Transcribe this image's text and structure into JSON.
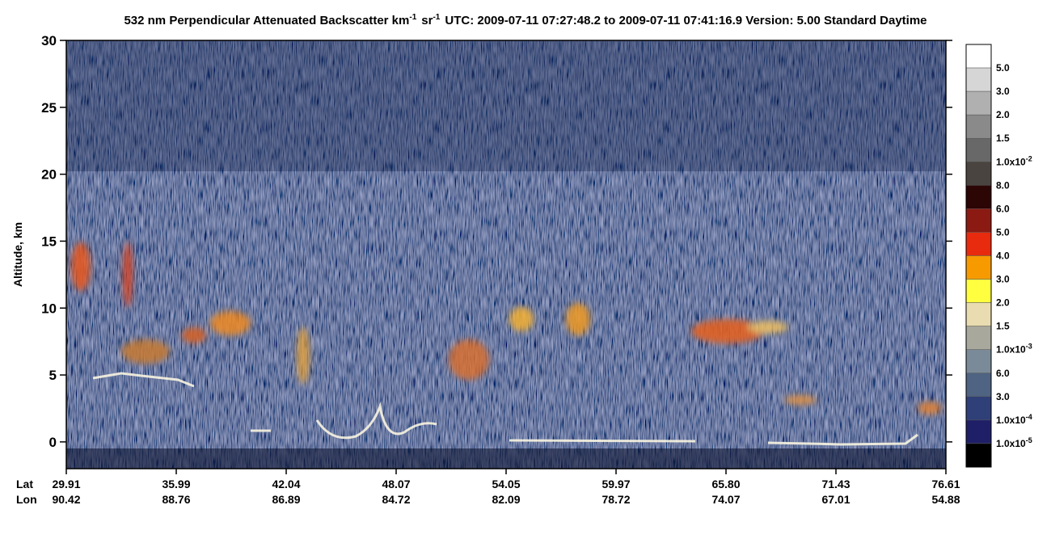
{
  "chart_data": {
    "type": "curtain",
    "title_parts": [
      "532 nm Perpendicular Attenuated Backscatter km",
      "-1",
      "sr",
      "-1",
      "UTC: 2009-07-11 07:27:48.2 to 2009-07-11 07:41:16.9  Version: 5.00 Standard Daytime"
    ],
    "ylabel": "Altitude, km",
    "ylim": [
      -2,
      30
    ],
    "yticks": [
      0,
      5,
      10,
      15,
      20,
      25,
      30
    ],
    "x_row_labels": [
      "Lat",
      "Lon"
    ],
    "lat": [
      "29.91",
      "35.99",
      "42.04",
      "48.07",
      "54.05",
      "59.97",
      "65.80",
      "71.43",
      "76.61"
    ],
    "lon": [
      "90.42",
      "88.76",
      "86.89",
      "84.72",
      "82.09",
      "78.72",
      "74.07",
      "67.01",
      "54.88"
    ],
    "colorbar": {
      "colors": [
        "#ffffff",
        "#d6d6d6",
        "#b0b0b0",
        "#8a8a8a",
        "#686868",
        "#4a4440",
        "#2c0505",
        "#8b1a12",
        "#e82a0e",
        "#f79a00",
        "#ffff40",
        "#e8dcb0",
        "#a8a89c",
        "#7a8a98",
        "#4f6482",
        "#2f3f78",
        "#1f1f68",
        "#000000"
      ],
      "labels": [
        "5.0",
        "3.0",
        "2.0",
        "1.5",
        {
          "text": "1.0x10",
          "exp": "-2"
        },
        "8.0",
        "6.0",
        "5.0",
        "4.0",
        "3.0",
        "2.0",
        "1.5",
        {
          "text": "1.0x10",
          "exp": "-3"
        },
        "6.0",
        "3.0",
        {
          "text": "1.0x10",
          "exp": "-4"
        },
        {
          "text": "1.0x10",
          "exp": "-5"
        }
      ]
    }
  }
}
